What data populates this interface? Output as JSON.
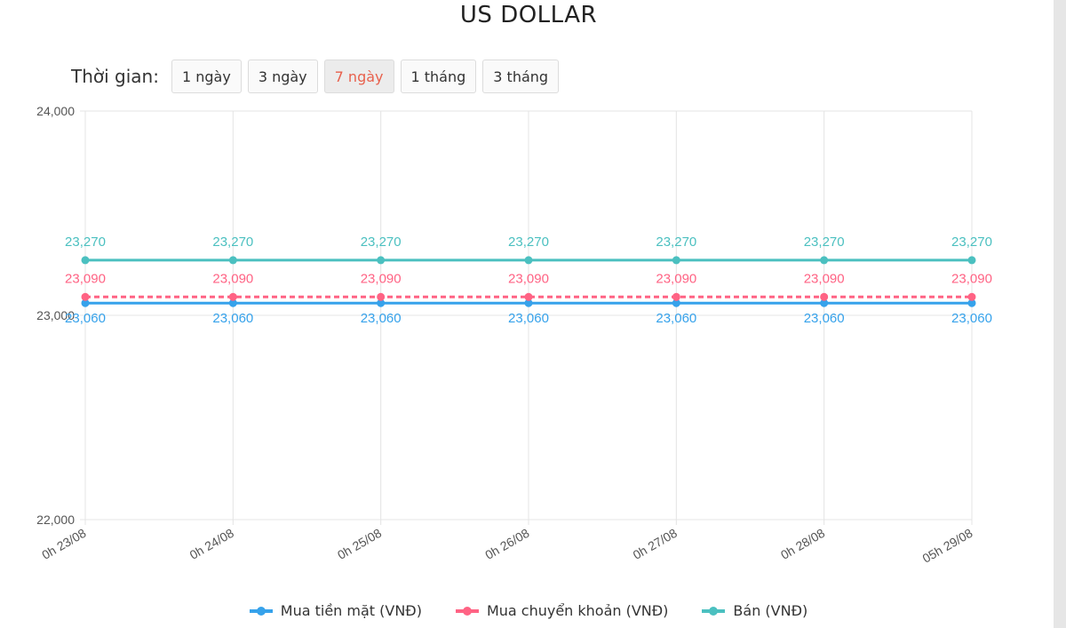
{
  "page": {
    "title": "US DOLLAR"
  },
  "range": {
    "label": "Thời gian:",
    "buttons": [
      {
        "label": "1 ngày",
        "active": false
      },
      {
        "label": "3 ngày",
        "active": false
      },
      {
        "label": "7 ngày",
        "active": true
      },
      {
        "label": "1 tháng",
        "active": false
      },
      {
        "label": "3 tháng",
        "active": false
      }
    ]
  },
  "chart_data": {
    "type": "line",
    "title": "US DOLLAR",
    "categories": [
      "0h 23/08",
      "0h 24/08",
      "0h 25/08",
      "0h 26/08",
      "0h 27/08",
      "0h 28/08",
      "05h 29/08"
    ],
    "y_ticks": [
      "24,000",
      "23,000",
      "22,000"
    ],
    "ylim": [
      22000,
      24000
    ],
    "grid": true,
    "legend_position": "bottom",
    "series": [
      {
        "name": "Mua tiền mặt (VNĐ)",
        "color": "#36a2eb",
        "dashed": false,
        "label_position": "below",
        "values": [
          23060,
          23060,
          23060,
          23060,
          23060,
          23060,
          23060
        ],
        "labels": [
          "23,060",
          "23,060",
          "23,060",
          "23,060",
          "23,060",
          "23,060",
          "23,060"
        ]
      },
      {
        "name": "Mua chuyển khoản (VNĐ)",
        "color": "#ff6384",
        "dashed": true,
        "label_position": "above",
        "values": [
          23090,
          23090,
          23090,
          23090,
          23090,
          23090,
          23090
        ],
        "labels": [
          "23,090",
          "23,090",
          "23,090",
          "23,090",
          "23,090",
          "23,090",
          "23,090"
        ]
      },
      {
        "name": "Bán (VNĐ)",
        "color": "#4bc0c0",
        "dashed": false,
        "label_position": "above",
        "values": [
          23270,
          23270,
          23270,
          23270,
          23270,
          23270,
          23270
        ],
        "labels": [
          "23,270",
          "23,270",
          "23,270",
          "23,270",
          "23,270",
          "23,270",
          "23,270"
        ]
      }
    ]
  }
}
